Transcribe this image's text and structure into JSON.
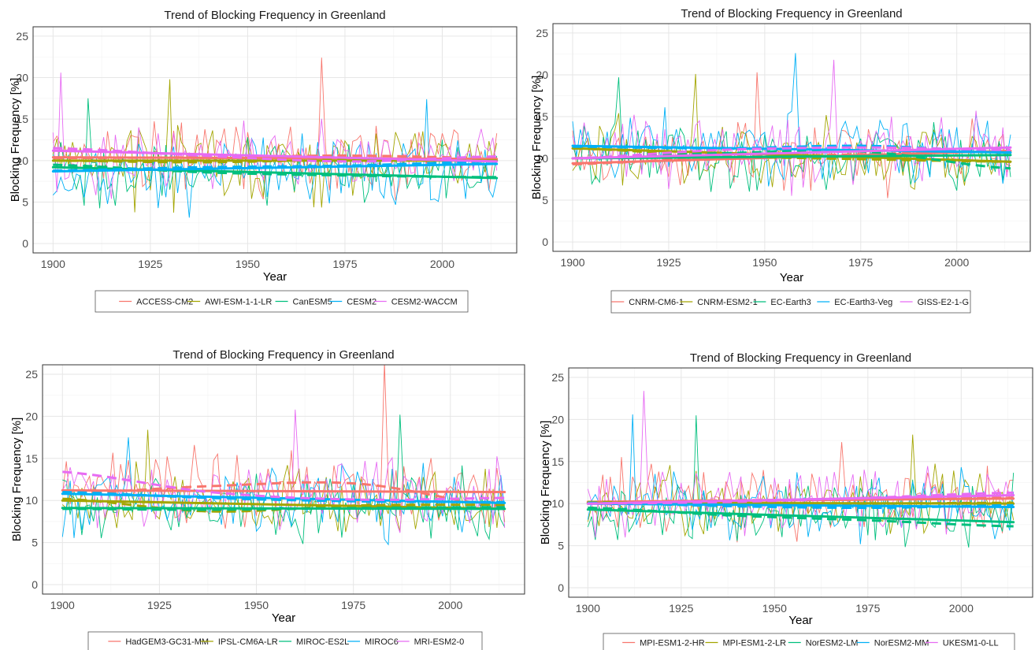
{
  "chart_data": [
    {
      "type": "line",
      "title": "Trend of Blocking Frequency in Greenland",
      "xlabel": "Year",
      "ylabel": "Blocking Frequency [%]",
      "xlim": [
        1900,
        2014
      ],
      "ylim": [
        0,
        25
      ],
      "x_ticks": [
        "1900",
        "1925",
        "1950",
        "1975",
        "2000"
      ],
      "y_ticks": [
        "0",
        "5",
        "10",
        "15",
        "20",
        "25"
      ],
      "grid": true,
      "legend_position": "bottom",
      "series": [
        {
          "name": "ACCESS-CM2",
          "color": "#F8766D",
          "mean": 10.3,
          "amp": 3.4,
          "peak": [
            1969,
            22.4
          ],
          "trend": [
            10.4,
            10.2
          ],
          "loess": [
            10.3,
            10.4,
            10.6,
            10.3
          ]
        },
        {
          "name": "AWI-ESM-1-1-LR",
          "color": "#A3A500",
          "mean": 10.0,
          "amp": 3.5,
          "peak": [
            1930,
            19.8
          ],
          "trend": [
            10.0,
            10.0
          ],
          "loess": [
            10.0,
            9.8,
            10.1,
            10.0
          ]
        },
        {
          "name": "CanESM5",
          "color": "#00BF7D",
          "mean": 8.6,
          "amp": 3.0,
          "peak": [
            1909,
            17.5
          ],
          "trend": [
            9.2,
            7.9
          ],
          "loess": [
            9.5,
            8.6,
            8.2,
            8.0
          ]
        },
        {
          "name": "CESM2",
          "color": "#00B0F6",
          "mean": 9.0,
          "amp": 3.3,
          "peak": [
            1996,
            17.4
          ],
          "trend": [
            8.7,
            9.6
          ],
          "loess": [
            8.8,
            9.2,
            9.4,
            9.9
          ]
        },
        {
          "name": "CESM2-WACCM",
          "color": "#E76BF3",
          "mean": 10.6,
          "amp": 3.3,
          "peak": [
            1902,
            20.6
          ],
          "trend": [
            11.2,
            9.9
          ],
          "loess": [
            11.5,
            10.6,
            9.9,
            10.5
          ]
        }
      ]
    },
    {
      "type": "line",
      "title": "Trend of Blocking Frequency in Greenland",
      "xlabel": "Year",
      "ylabel": "Blocking Frequency [%]",
      "xlim": [
        1900,
        2014
      ],
      "ylim": [
        0,
        25
      ],
      "x_ticks": [
        "1900",
        "1925",
        "1950",
        "1975",
        "2000"
      ],
      "y_ticks": [
        "0",
        "5",
        "10",
        "15",
        "20",
        "25"
      ],
      "grid": true,
      "legend_position": "bottom",
      "series": [
        {
          "name": "CNRM-CM6-1",
          "color": "#F8766D",
          "mean": 10.3,
          "amp": 3.2,
          "peak": [
            1948,
            20.3
          ],
          "trend": [
            9.4,
            10.9
          ],
          "loess": [
            9.3,
            10.1,
            10.5,
            10.9
          ]
        },
        {
          "name": "CNRM-ESM2-1",
          "color": "#A3A500",
          "mean": 10.2,
          "amp": 3.2,
          "peak": [
            1932,
            20.1
          ],
          "trend": [
            11.2,
            9.6
          ],
          "loess": [
            11.2,
            10.3,
            9.9,
            9.6
          ]
        },
        {
          "name": "EC-Earth3",
          "color": "#00BF7D",
          "mean": 10.3,
          "amp": 3.2,
          "peak": [
            1912,
            19.7
          ],
          "trend": [
            10.0,
            10.4
          ],
          "loess": [
            10.0,
            10.6,
            10.8,
            8.8
          ]
        },
        {
          "name": "EC-Earth3-Veg",
          "color": "#00B0F6",
          "mean": 11.0,
          "amp": 3.3,
          "peak": [
            1958,
            22.6
          ],
          "trend": [
            11.5,
            10.7
          ],
          "loess": [
            11.4,
            11.2,
            11.5,
            10.8
          ]
        },
        {
          "name": "GISS-E2-1-G",
          "color": "#E76BF3",
          "mean": 10.9,
          "amp": 3.3,
          "peak": [
            1968,
            21.8
          ],
          "trend": [
            10.0,
            11.3
          ],
          "loess": [
            10.0,
            11.0,
            11.3,
            11.0
          ]
        }
      ]
    },
    {
      "type": "line",
      "title": "Trend of Blocking Frequency in Greenland",
      "xlabel": "Year",
      "ylabel": "Blocking Frequency [%]",
      "xlim": [
        1900,
        2014
      ],
      "ylim": [
        0,
        25
      ],
      "x_ticks": [
        "1900",
        "1925",
        "1950",
        "1975",
        "2000"
      ],
      "y_ticks": [
        "0",
        "5",
        "10",
        "15",
        "20",
        "25"
      ],
      "grid": true,
      "legend_position": "bottom",
      "series": [
        {
          "name": "HadGEM3-GC31-MM",
          "color": "#F8766D",
          "mean": 11.3,
          "amp": 3.8,
          "peak": [
            1983,
            26.4
          ],
          "trend": [
            11.2,
            11.0
          ],
          "loess": [
            10.8,
            11.7,
            12.0,
            9.3
          ]
        },
        {
          "name": "IPSL-CM6A-LR",
          "color": "#A3A500",
          "mean": 9.5,
          "amp": 3.4,
          "peak": [
            1922,
            18.4
          ],
          "trend": [
            10.0,
            9.0
          ],
          "loess": [
            10.2,
            8.7,
            9.4,
            9.5
          ]
        },
        {
          "name": "MIROC-ES2L",
          "color": "#00BF7D",
          "mean": 9.0,
          "amp": 3.2,
          "peak": [
            1987,
            20.2
          ],
          "trend": [
            9.1,
            9.0
          ],
          "loess": [
            9.0,
            8.9,
            9.1,
            9.2
          ]
        },
        {
          "name": "MIROC6",
          "color": "#00B0F6",
          "mean": 10.0,
          "amp": 3.2,
          "peak": [
            1917,
            17.5
          ],
          "trend": [
            10.8,
            9.7
          ],
          "loess": [
            11.0,
            10.3,
            9.9,
            9.8
          ]
        },
        {
          "name": "MRI-ESM2-0",
          "color": "#E76BF3",
          "mean": 10.6,
          "amp": 3.2,
          "peak": [
            1960,
            20.8
          ],
          "trend": [
            null,
            null
          ],
          "loess": [
            13.4,
            11.0,
            10.1,
            10.3
          ]
        }
      ]
    },
    {
      "type": "line",
      "title": "Trend of Blocking Frequency in Greenland",
      "xlabel": "Year",
      "ylabel": "Blocking Frequency [%]",
      "xlim": [
        1900,
        2014
      ],
      "ylim": [
        0,
        25
      ],
      "x_ticks": [
        "1900",
        "1925",
        "1950",
        "1975",
        "2000"
      ],
      "y_ticks": [
        "0",
        "5",
        "10",
        "15",
        "20",
        "25"
      ],
      "grid": true,
      "legend_position": "bottom",
      "series": [
        {
          "name": "MPI-ESM1-2-HR",
          "color": "#F8766D",
          "mean": 10.4,
          "amp": 3.2,
          "peak": [
            1968,
            17.3
          ],
          "trend": [
            10.2,
            10.6
          ],
          "loess": [
            10.2,
            10.4,
            10.5,
            10.7
          ]
        },
        {
          "name": "MPI-ESM1-2-LR",
          "color": "#A3A500",
          "mean": 10.1,
          "amp": 3.2,
          "peak": [
            1987,
            18.2
          ],
          "trend": [
            10.1,
            10.0
          ],
          "loess": [
            10.2,
            9.9,
            10.0,
            10.1
          ]
        },
        {
          "name": "NorESM2-LM",
          "color": "#00BF7D",
          "mean": 8.6,
          "amp": 3.2,
          "peak": [
            1929,
            20.5
          ],
          "trend": [
            9.3,
            7.8
          ],
          "loess": [
            9.5,
            8.6,
            8.0,
            7.3
          ]
        },
        {
          "name": "NorESM2-MM",
          "color": "#00B0F6",
          "mean": 9.8,
          "amp": 3.3,
          "peak": [
            1912,
            20.6
          ],
          "trend": [
            10.0,
            9.6
          ],
          "loess": [
            10.1,
            9.7,
            9.5,
            9.8
          ]
        },
        {
          "name": "UKESM1-0-LL",
          "color": "#E76BF3",
          "mean": 10.4,
          "amp": 3.3,
          "peak": [
            1915,
            23.4
          ],
          "trend": [
            10.0,
            11.0
          ],
          "loess": [
            10.0,
            10.2,
            10.7,
            11.3
          ]
        }
      ]
    }
  ]
}
